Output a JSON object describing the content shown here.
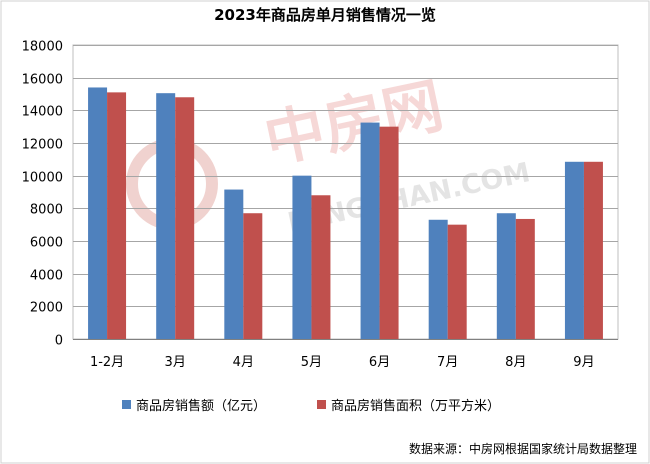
{
  "watermark": {
    "brand": "中房网",
    "url": "FANGCHAN.COM"
  },
  "source_note": "数据来源：中房网根据国家统计局数据整理",
  "chart_data": {
    "type": "bar",
    "title": "2023年商品房单月销售情况一览",
    "categories": [
      "1-2月",
      "3月",
      "4月",
      "5月",
      "6月",
      "7月",
      "8月",
      "9月"
    ],
    "series": [
      {
        "name": "商品房销售额（亿元）",
        "color": "#4F81BD",
        "values": [
          15400,
          15050,
          9150,
          10000,
          13250,
          7300,
          7700,
          10850
        ]
      },
      {
        "name": "商品房销售面积（万平方米）",
        "color": "#C0504D",
        "values": [
          15100,
          14800,
          7700,
          8800,
          13000,
          7000,
          7350,
          10850
        ]
      }
    ],
    "ylim": [
      0,
      18000
    ],
    "yticks": [
      0,
      2000,
      4000,
      6000,
      8000,
      10000,
      12000,
      14000,
      16000,
      18000
    ],
    "grid": true,
    "legend_position": "bottom"
  }
}
